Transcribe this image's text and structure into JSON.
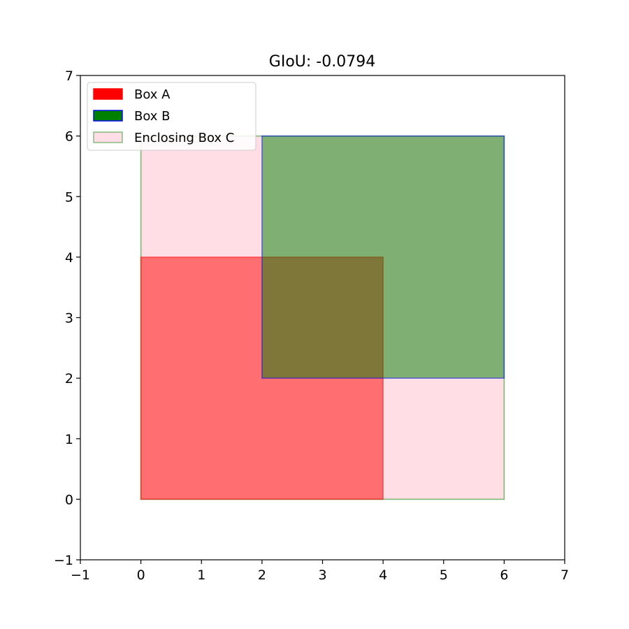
{
  "chart_data": {
    "type": "rectangles",
    "title": "GIoU: -0.0794",
    "xlabel": "",
    "ylabel": "",
    "xlim": [
      -1,
      7
    ],
    "ylim": [
      -1,
      7
    ],
    "xticks": [
      -1,
      0,
      1,
      2,
      3,
      4,
      5,
      6,
      7
    ],
    "yticks": [
      -1,
      0,
      1,
      2,
      3,
      4,
      5,
      6,
      7
    ],
    "xtick_labels": [
      "−1",
      "0",
      "1",
      "2",
      "3",
      "4",
      "5",
      "6",
      "7"
    ],
    "ytick_labels": [
      "−1",
      "0",
      "1",
      "2",
      "3",
      "4",
      "5",
      "6",
      "7"
    ],
    "grid": false,
    "legend_position": "upper-left",
    "boxes": [
      {
        "id": "enclosing-box-c",
        "name": "Enclosing Box C",
        "x1": 0,
        "y1": 0,
        "x2": 6,
        "y2": 6,
        "fill": "#ffc0cb",
        "fill_opacity": 0.5,
        "edge": "#008000",
        "edge_opacity": 0.5
      },
      {
        "id": "box-a",
        "name": "Box A",
        "x1": 0,
        "y1": 0,
        "x2": 4,
        "y2": 4,
        "fill": "#ff0000",
        "fill_opacity": 0.5,
        "edge": "#ff0000",
        "edge_opacity": 0.5
      },
      {
        "id": "box-b",
        "name": "Box B",
        "x1": 2,
        "y1": 2,
        "x2": 6,
        "y2": 6,
        "fill": "#008000",
        "fill_opacity": 0.5,
        "edge": "#0000ff",
        "edge_opacity": 0.5
      }
    ],
    "legend": [
      {
        "label": "Box A",
        "fill": "#ff0000",
        "edge": "#ff0000",
        "alpha": 1
      },
      {
        "label": "Box B",
        "fill": "#008000",
        "edge": "#0000ff",
        "alpha": 1
      },
      {
        "label": "Enclosing Box C",
        "fill": "#ffc0cb",
        "edge": "#008000",
        "alpha": 0.5
      }
    ]
  }
}
